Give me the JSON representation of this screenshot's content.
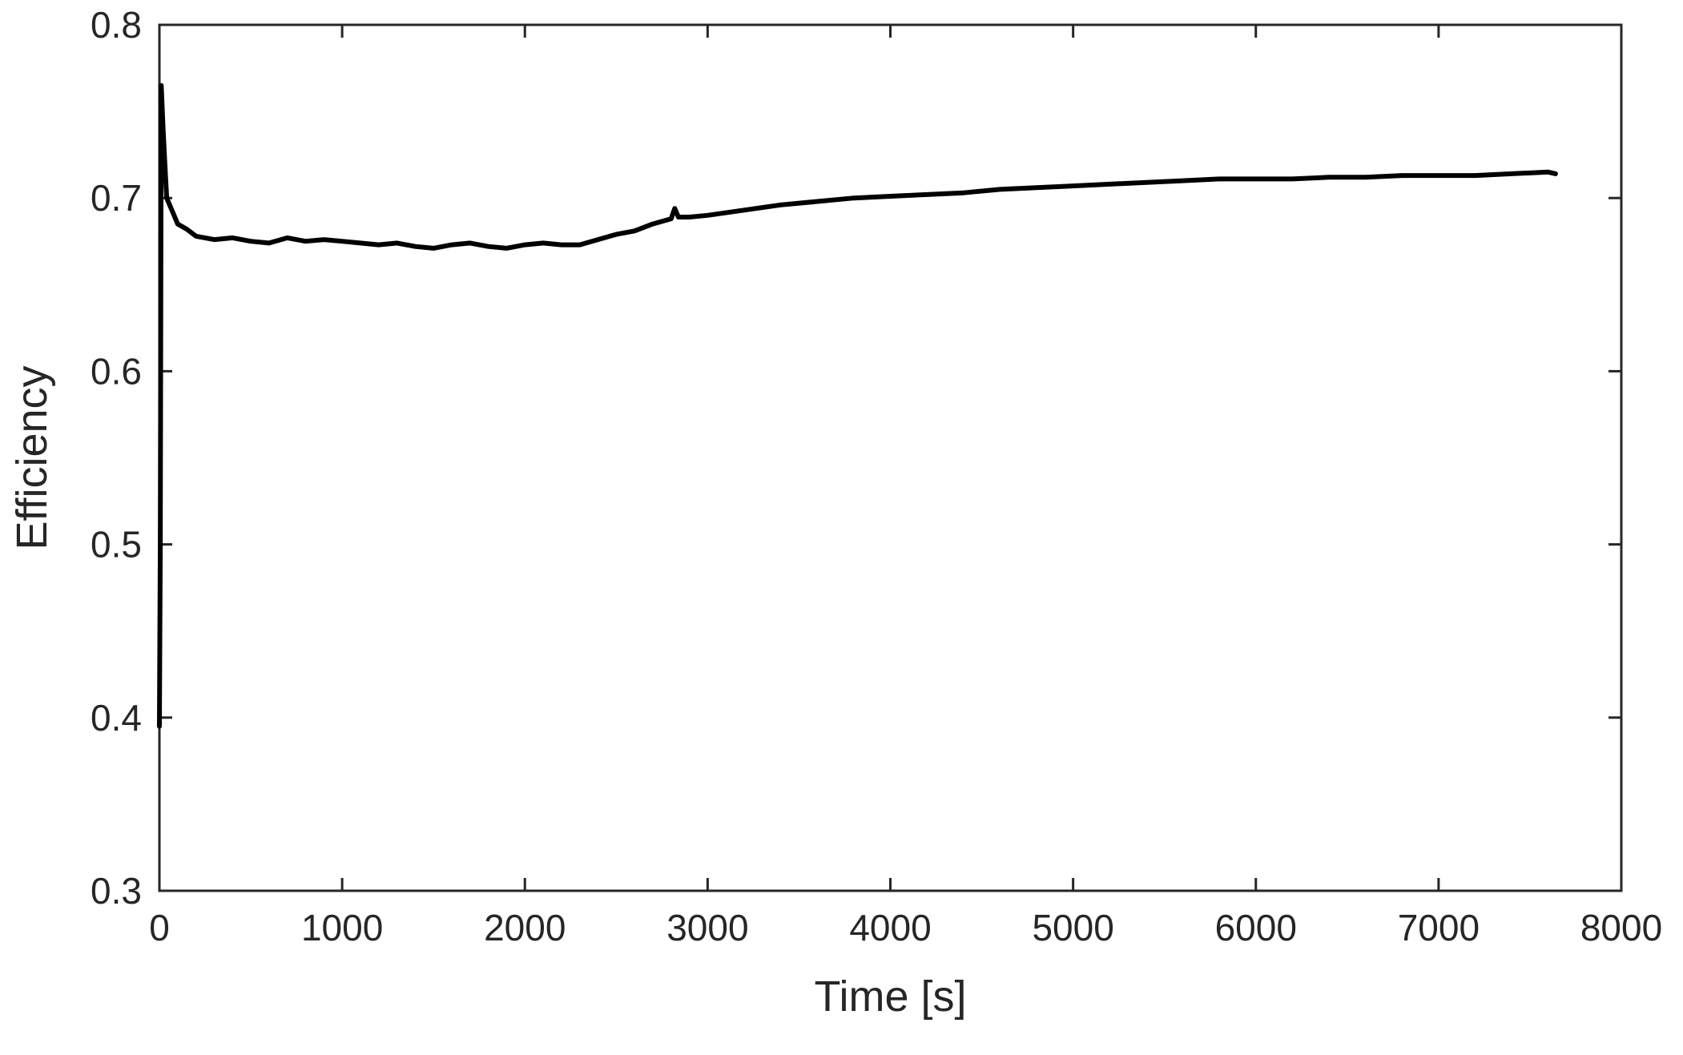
{
  "chart_data": {
    "type": "line",
    "title": "",
    "xlabel": "Time [s]",
    "ylabel": "Efficiency",
    "xlim": [
      0,
      8000
    ],
    "ylim": [
      0.3,
      0.8
    ],
    "xticks": [
      0,
      1000,
      2000,
      3000,
      4000,
      5000,
      6000,
      7000,
      8000
    ],
    "xtick_labels": [
      "0",
      "1000",
      "2000",
      "3000",
      "4000",
      "5000",
      "6000",
      "7000",
      "8000"
    ],
    "yticks": [
      0.3,
      0.4,
      0.5,
      0.6,
      0.7,
      0.8
    ],
    "ytick_labels": [
      "0.3",
      "0.4",
      "0.5",
      "0.6",
      "0.7",
      "0.8"
    ],
    "grid": false,
    "legend": "none",
    "line_color": "#000000",
    "series": [
      {
        "x": [
          0,
          5,
          10,
          20,
          30,
          40,
          60,
          80,
          100,
          150,
          200,
          300,
          400,
          500,
          600,
          700,
          800,
          900,
          1000,
          1100,
          1200,
          1300,
          1400,
          1500,
          1600,
          1700,
          1800,
          1900,
          2000,
          2100,
          2200,
          2300,
          2400,
          2500,
          2600,
          2700,
          2800,
          2820,
          2840,
          2900,
          3000,
          3200,
          3400,
          3600,
          3800,
          4000,
          4200,
          4400,
          4600,
          4800,
          5000,
          5200,
          5400,
          5600,
          5800,
          6000,
          6200,
          6400,
          6600,
          6800,
          7000,
          7200,
          7400,
          7600,
          7640
        ],
        "values": [
          0.395,
          0.5,
          0.765,
          0.74,
          0.72,
          0.7,
          0.695,
          0.69,
          0.685,
          0.682,
          0.678,
          0.676,
          0.677,
          0.675,
          0.674,
          0.677,
          0.675,
          0.676,
          0.675,
          0.674,
          0.673,
          0.674,
          0.672,
          0.671,
          0.673,
          0.674,
          0.672,
          0.671,
          0.673,
          0.674,
          0.673,
          0.673,
          0.676,
          0.679,
          0.681,
          0.685,
          0.688,
          0.694,
          0.689,
          0.689,
          0.69,
          0.693,
          0.696,
          0.698,
          0.7,
          0.701,
          0.702,
          0.703,
          0.705,
          0.706,
          0.707,
          0.708,
          0.709,
          0.71,
          0.711,
          0.711,
          0.711,
          0.712,
          0.712,
          0.713,
          0.713,
          0.713,
          0.714,
          0.715,
          0.714
        ]
      }
    ]
  }
}
